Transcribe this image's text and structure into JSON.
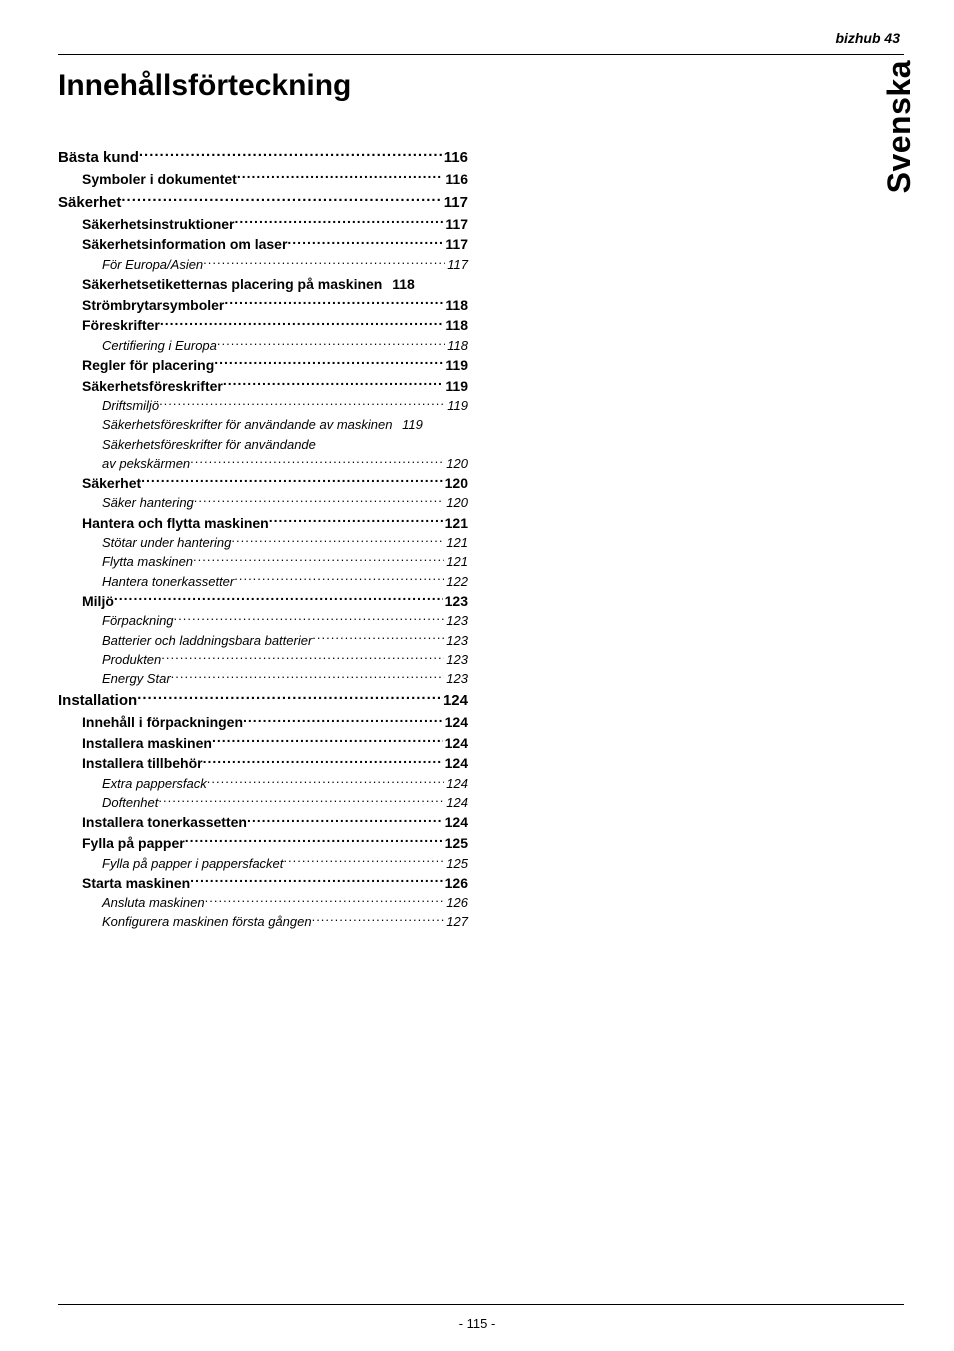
{
  "header": {
    "product": "bizhub 43"
  },
  "title": "Innehållsförteckning",
  "side_tab": "Svenska",
  "footer": {
    "page_number": "- 115 -"
  },
  "typography": {
    "title_fontsize_pt": 22,
    "side_tab_fontsize_pt": 24,
    "lvl0_fontsize_pt": 11,
    "lvl1_fontsize_pt": 10.5,
    "lvl2_fontsize_pt": 10,
    "footer_fontsize_pt": 10,
    "font_family": "Arial",
    "colors": {
      "text": "#000000",
      "background": "#ffffff",
      "rule": "#000000"
    }
  },
  "toc": [
    {
      "level": 0,
      "label": "Bästa kund",
      "page": "116"
    },
    {
      "level": 1,
      "label": "Symboler i dokumentet",
      "page": "116"
    },
    {
      "level": 0,
      "label": "Säkerhet",
      "page": "117"
    },
    {
      "level": 1,
      "label": "Säkerhetsinstruktioner",
      "page": "117"
    },
    {
      "level": 1,
      "label": "Säkerhetsinformation om laser",
      "page": "117"
    },
    {
      "level": 2,
      "label": "För Europa/Asien",
      "page": "117"
    },
    {
      "level": 1,
      "label": "Säkerhetsetiketternas placering på maskinen",
      "page": "118",
      "tight": true
    },
    {
      "level": 1,
      "label": "Strömbrytarsymboler",
      "page": "118"
    },
    {
      "level": 1,
      "label": "Föreskrifter",
      "page": "118"
    },
    {
      "level": 2,
      "label": "Certifiering i Europa",
      "page": "118"
    },
    {
      "level": 1,
      "label": "Regler för placering",
      "page": "119"
    },
    {
      "level": 1,
      "label": "Säkerhetsföreskrifter",
      "page": "119"
    },
    {
      "level": 2,
      "label": "Driftsmiljö",
      "page": "119"
    },
    {
      "level": 2,
      "label": "Säkerhetsföreskrifter för användande av maskinen",
      "page": "119",
      "tight": true
    },
    {
      "level": 2,
      "label": "Säkerhetsföreskrifter för användande",
      "cont": true
    },
    {
      "level": 2,
      "label": "av pekskärmen",
      "page": "120"
    },
    {
      "level": 1,
      "label": "Säkerhet",
      "page": "120"
    },
    {
      "level": 2,
      "label": "Säker hantering",
      "page": "120"
    },
    {
      "level": 1,
      "label": "Hantera och flytta maskinen",
      "page": "121"
    },
    {
      "level": 2,
      "label": "Stötar under hantering",
      "page": "121"
    },
    {
      "level": 2,
      "label": "Flytta maskinen",
      "page": "121"
    },
    {
      "level": 2,
      "label": "Hantera tonerkassetter",
      "page": "122"
    },
    {
      "level": 1,
      "label": "Miljö",
      "page": "123"
    },
    {
      "level": 2,
      "label": "Förpackning",
      "page": "123"
    },
    {
      "level": 2,
      "label": "Batterier och laddningsbara batterier",
      "page": "123"
    },
    {
      "level": 2,
      "label": "Produkten",
      "page": "123"
    },
    {
      "level": 2,
      "label": "Energy Star",
      "page": "123"
    },
    {
      "level": 0,
      "label": "Installation",
      "page": "124"
    },
    {
      "level": 1,
      "label": "Innehåll i förpackningen",
      "page": "124"
    },
    {
      "level": 1,
      "label": "Installera maskinen",
      "page": "124"
    },
    {
      "level": 1,
      "label": "Installera tillbehör",
      "page": "124"
    },
    {
      "level": 2,
      "label": "Extra pappersfack",
      "page": "124"
    },
    {
      "level": 2,
      "label": "Doftenhet",
      "page": "124"
    },
    {
      "level": 1,
      "label": "Installera tonerkassetten",
      "page": "124"
    },
    {
      "level": 1,
      "label": "Fylla på papper",
      "page": "125"
    },
    {
      "level": 2,
      "label": "Fylla på papper i pappersfacket",
      "page": "125"
    },
    {
      "level": 1,
      "label": "Starta maskinen",
      "page": "126"
    },
    {
      "level": 2,
      "label": "Ansluta maskinen",
      "page": "126"
    },
    {
      "level": 2,
      "label": "Konfigurera maskinen första gången",
      "page": "127"
    }
  ]
}
